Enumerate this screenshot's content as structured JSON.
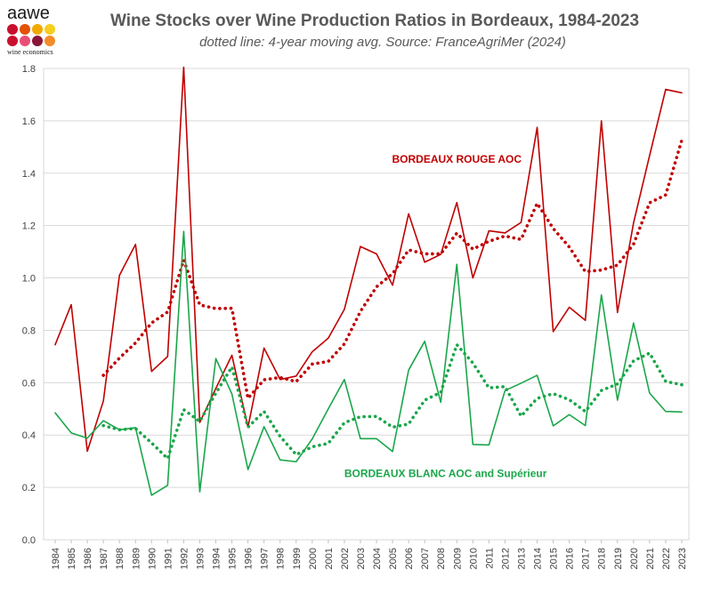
{
  "logo": {
    "name": "aawe",
    "subtitle": "wine economics",
    "dot_colors": [
      "#c8102e",
      "#e35205",
      "#f2a900",
      "#f6cf1e",
      "#c8102e",
      "#e94e77",
      "#8a1538",
      "#f28c28"
    ]
  },
  "chart_data": {
    "type": "line",
    "title": "Wine Stocks over Wine Production Ratios in Bordeaux, 1984-2023",
    "subtitle": "dotted line: 4-year moving avg. Source: FranceAgriMer (2024)",
    "xlabel": "",
    "ylabel": "",
    "ylim": [
      0,
      1.8
    ],
    "yticks": [
      0.0,
      0.2,
      0.4,
      0.6,
      0.8,
      1.0,
      1.2,
      1.4,
      1.6,
      1.8
    ],
    "ytick_labels": [
      "0.0",
      "0.2",
      "0.4",
      "0.6",
      "0.8",
      "1.0",
      "1.2",
      "1.4",
      "1.6",
      "1.8"
    ],
    "grid": true,
    "x": [
      1984,
      1985,
      1986,
      1987,
      1988,
      1989,
      1990,
      1991,
      1992,
      1993,
      1994,
      1995,
      1996,
      1997,
      1998,
      1999,
      2000,
      2001,
      2002,
      2003,
      2004,
      2005,
      2006,
      2007,
      2008,
      2009,
      2010,
      2011,
      2012,
      2013,
      2014,
      2015,
      2016,
      2017,
      2018,
      2019,
      2020,
      2021,
      2022,
      2023
    ],
    "x_labels": [
      "1984",
      "1985",
      "1986",
      "1987",
      "1988",
      "1989",
      "1990",
      "1991",
      "1992",
      "1993",
      "1994",
      "1995",
      "1996",
      "1997",
      "1998",
      "1999",
      "2000",
      "2001",
      "2002",
      "2003",
      "2004",
      "2005",
      "2006",
      "2007",
      "2008",
      "2009",
      "2010",
      "2011",
      "2012",
      "2013",
      "2014",
      "2015",
      "2016",
      "2017",
      "2018",
      "2019",
      "2020",
      "2021",
      "2022",
      "2023"
    ],
    "series": [
      {
        "name": "BORDEAUX ROUGE AOC",
        "color": "#c00000",
        "style": "solid",
        "values": [
          0.745,
          0.898,
          0.338,
          0.53,
          1.01,
          1.128,
          0.643,
          0.7,
          1.805,
          0.448,
          0.578,
          0.705,
          0.43,
          0.732,
          0.612,
          0.625,
          0.718,
          0.77,
          0.88,
          1.12,
          1.092,
          0.972,
          1.245,
          1.06,
          1.09,
          1.288,
          1.0,
          1.18,
          1.172,
          1.212,
          1.575,
          0.795,
          0.888,
          0.838,
          1.6,
          0.868,
          1.21,
          1.468,
          1.72,
          1.707
        ]
      },
      {
        "name": "BORDEAUX ROUGE AOC 4-year moving avg.",
        "color": "#c00000",
        "style": "dotted",
        "values": [
          null,
          null,
          null,
          0.628,
          0.694,
          0.752,
          0.828,
          0.87,
          1.068,
          0.897,
          0.883,
          0.884,
          0.54,
          0.611,
          0.62,
          0.604,
          0.671,
          0.681,
          0.748,
          0.872,
          0.966,
          1.016,
          1.107,
          1.092,
          1.092,
          1.171,
          1.11,
          1.14,
          1.16,
          1.147,
          1.285,
          1.189,
          1.118,
          1.024,
          1.03,
          1.049,
          1.129,
          1.287,
          1.317,
          1.526
        ]
      },
      {
        "name": "BORDEAUX BLANC AOC and Supérieur",
        "color": "#1aa64a",
        "style": "solid",
        "values": [
          0.485,
          0.408,
          0.388,
          0.455,
          0.42,
          0.428,
          0.17,
          0.208,
          1.178,
          0.183,
          0.692,
          0.557,
          0.268,
          0.432,
          0.305,
          0.298,
          0.385,
          0.5,
          0.612,
          0.386,
          0.386,
          0.337,
          0.648,
          0.758,
          0.525,
          1.052,
          0.364,
          0.362,
          0.57,
          0.598,
          0.628,
          0.435,
          0.478,
          0.436,
          0.935,
          0.533,
          0.828,
          0.56,
          0.49,
          0.488
        ]
      },
      {
        "name": "BORDEAUX BLANC AOC and Supérieur 4-year moving avg.",
        "color": "#1aa64a",
        "style": "dotted",
        "values": [
          null,
          null,
          null,
          0.436,
          0.42,
          0.425,
          0.37,
          0.31,
          0.497,
          0.452,
          0.56,
          0.66,
          0.43,
          0.49,
          0.395,
          0.325,
          0.355,
          0.368,
          0.447,
          0.47,
          0.471,
          0.43,
          0.442,
          0.533,
          0.563,
          0.745,
          0.675,
          0.58,
          0.585,
          0.472,
          0.54,
          0.558,
          0.535,
          0.49,
          0.57,
          0.595,
          0.683,
          0.713,
          0.605,
          0.592
        ]
      }
    ],
    "annotations": [
      {
        "text": "BORDEAUX ROUGE AOC",
        "color": "#c00000",
        "x": 2009,
        "y": 1.44
      },
      {
        "text": "BORDEAUX BLANC AOC and Supérieur",
        "color": "#1aa64a",
        "x": 2008.3,
        "y": 0.24
      }
    ]
  }
}
